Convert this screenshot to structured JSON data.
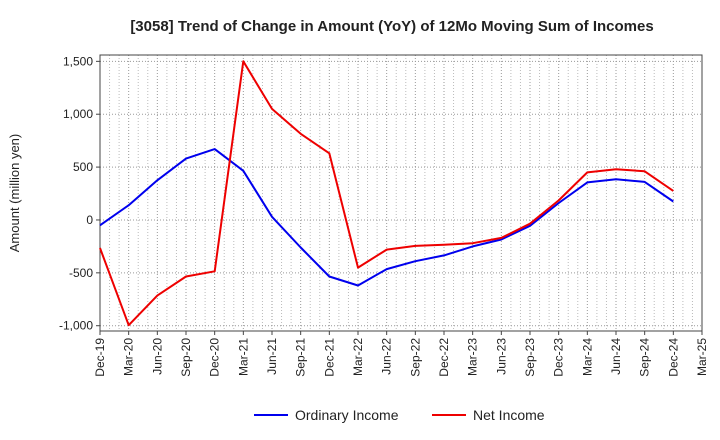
{
  "chart_data": {
    "type": "line",
    "title": "[3058]  Trend of Change in Amount (YoY) of 12Mo Moving Sum of Incomes",
    "xlabel": "",
    "ylabel": "Amount (million yen)",
    "ylim": [
      -1050,
      1560
    ],
    "yticks": [
      -1000,
      -500,
      0,
      500,
      1000,
      1500
    ],
    "ytick_labels": [
      "-1,000",
      "-500",
      "0",
      "500",
      "1,000",
      "1,500"
    ],
    "categories": [
      "Dec-19",
      "Mar-20",
      "Jun-20",
      "Sep-20",
      "Dec-20",
      "Mar-21",
      "Jun-21",
      "Sep-21",
      "Dec-21",
      "Mar-22",
      "Jun-22",
      "Sep-22",
      "Dec-22",
      "Mar-23",
      "Jun-23",
      "Sep-23",
      "Dec-23",
      "Mar-24",
      "Jun-24",
      "Sep-24",
      "Dec-24",
      "Mar-25"
    ],
    "grid": true,
    "legend_position": "bottom",
    "series": [
      {
        "name": "Ordinary Income",
        "color": "#0000ee",
        "values": [
          -50,
          140,
          375,
          580,
          670,
          465,
          30,
          -260,
          -535,
          -620,
          -465,
          -390,
          -335,
          -250,
          -185,
          -55,
          160,
          355,
          385,
          360,
          175,
          null
        ]
      },
      {
        "name": "Net Income",
        "color": "#ee0000",
        "values": [
          -265,
          -995,
          -715,
          -535,
          -485,
          1500,
          1050,
          815,
          630,
          -450,
          -280,
          -245,
          -235,
          -220,
          -170,
          -35,
          185,
          450,
          480,
          460,
          275,
          null
        ]
      }
    ]
  }
}
